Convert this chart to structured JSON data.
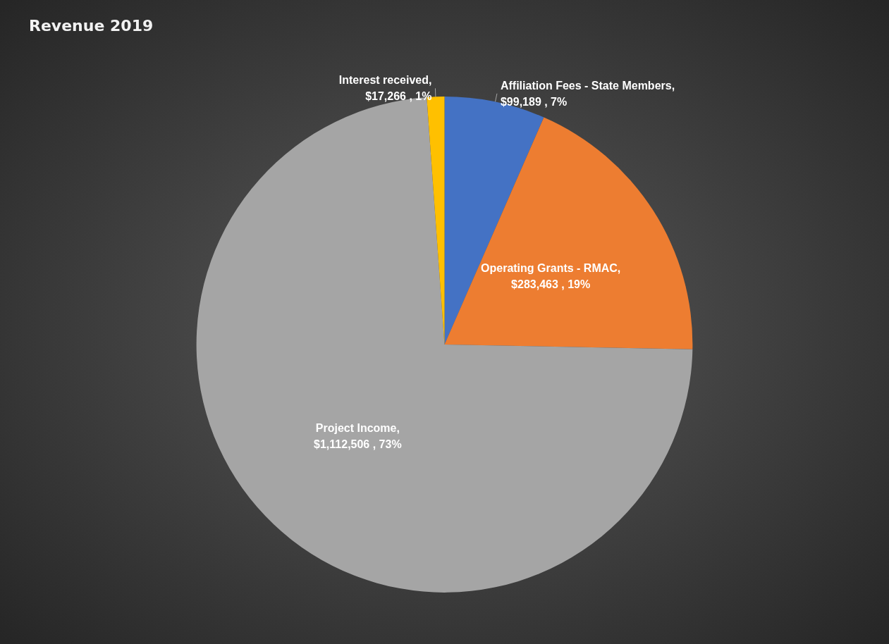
{
  "chart_data": {
    "type": "pie",
    "title": "Revenue 2019",
    "categories": [
      "Affiliation Fees - State Members",
      "Operating Grants - RMAC",
      "Project Income",
      "Interest received"
    ],
    "values": [
      99189,
      283463,
      1112506,
      17266
    ],
    "value_labels": [
      ", $99,189 , 7%",
      ", $283,463 , 19%",
      ", $1,112,506 , 73%",
      ", $17,266 , 1%"
    ],
    "colors": [
      "#4472c4",
      "#ed7d31",
      "#a5a5a5",
      "#ffc000"
    ],
    "legend": false
  }
}
